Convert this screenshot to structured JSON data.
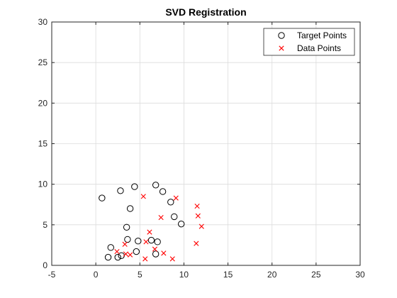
{
  "chart_data": {
    "type": "scatter",
    "title": "SVD Registration",
    "xlim": [
      -5,
      30
    ],
    "ylim": [
      0,
      30
    ],
    "xticks": [
      -5,
      0,
      5,
      10,
      15,
      20,
      25,
      30
    ],
    "yticks": [
      0,
      5,
      10,
      15,
      20,
      25,
      30
    ],
    "grid": true,
    "legend_position": "top-right",
    "series": [
      {
        "name": "Target Points",
        "marker": "circle",
        "color": "#000000",
        "points": [
          [
            0.7,
            8.3
          ],
          [
            2.8,
            9.2
          ],
          [
            4.4,
            9.7
          ],
          [
            6.8,
            9.9
          ],
          [
            7.6,
            9.1
          ],
          [
            8.5,
            7.8
          ],
          [
            3.9,
            7.0
          ],
          [
            8.9,
            6.0
          ],
          [
            9.7,
            5.1
          ],
          [
            3.5,
            4.7
          ],
          [
            3.6,
            3.2
          ],
          [
            4.8,
            3.0
          ],
          [
            6.3,
            3.1
          ],
          [
            7.0,
            2.9
          ],
          [
            1.7,
            2.2
          ],
          [
            4.6,
            1.7
          ],
          [
            6.8,
            1.4
          ],
          [
            1.4,
            1.0
          ],
          [
            2.5,
            1.0
          ],
          [
            2.9,
            1.2
          ]
        ]
      },
      {
        "name": "Data Points",
        "marker": "x",
        "color": "#ff0000",
        "points": [
          [
            5.4,
            8.5
          ],
          [
            9.1,
            8.3
          ],
          [
            11.5,
            7.3
          ],
          [
            11.6,
            6.1
          ],
          [
            12.0,
            4.8
          ],
          [
            7.4,
            5.9
          ],
          [
            6.1,
            4.1
          ],
          [
            11.4,
            2.7
          ],
          [
            5.7,
            2.9
          ],
          [
            3.3,
            2.6
          ],
          [
            6.7,
            2.0
          ],
          [
            2.4,
            1.7
          ],
          [
            3.4,
            1.4
          ],
          [
            3.9,
            1.3
          ],
          [
            7.7,
            1.5
          ],
          [
            5.6,
            0.8
          ],
          [
            8.7,
            0.8
          ]
        ]
      }
    ]
  }
}
